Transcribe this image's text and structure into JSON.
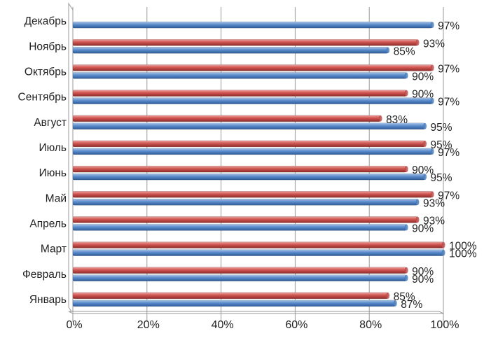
{
  "chart_data": {
    "type": "bar",
    "orientation": "horizontal",
    "style": "3d-cylinder",
    "categories": [
      "Январь",
      "Февраль",
      "Март",
      "Апрель",
      "Май",
      "Июнь",
      "Июль",
      "Август",
      "Сентябрь",
      "Октябрь",
      "Ноябрь",
      "Декабрь"
    ],
    "series": [
      {
        "color": "#4f81bd",
        "values": [
          87,
          90,
          100,
          90,
          93,
          95,
          97,
          95,
          97,
          90,
          85,
          97
        ],
        "labels": [
          "87%",
          "90%",
          "100%",
          "90%",
          "93%",
          "95%",
          "97%",
          "95%",
          "97%",
          "90%",
          "85%",
          "97%"
        ]
      },
      {
        "color": "#c0504d",
        "values": [
          85,
          90,
          100,
          93,
          97,
          90,
          95,
          83,
          90,
          97,
          93,
          null
        ],
        "labels": [
          "85%",
          "90%",
          "100%",
          "93%",
          "97%",
          "90%",
          "95%",
          "83%",
          "90%",
          "97%",
          "93%",
          null
        ]
      }
    ],
    "xlim": [
      0,
      100
    ],
    "xticks": [
      "0%",
      "20%",
      "40%",
      "60%",
      "80%",
      "100%"
    ],
    "grid": true,
    "legend": "none"
  }
}
